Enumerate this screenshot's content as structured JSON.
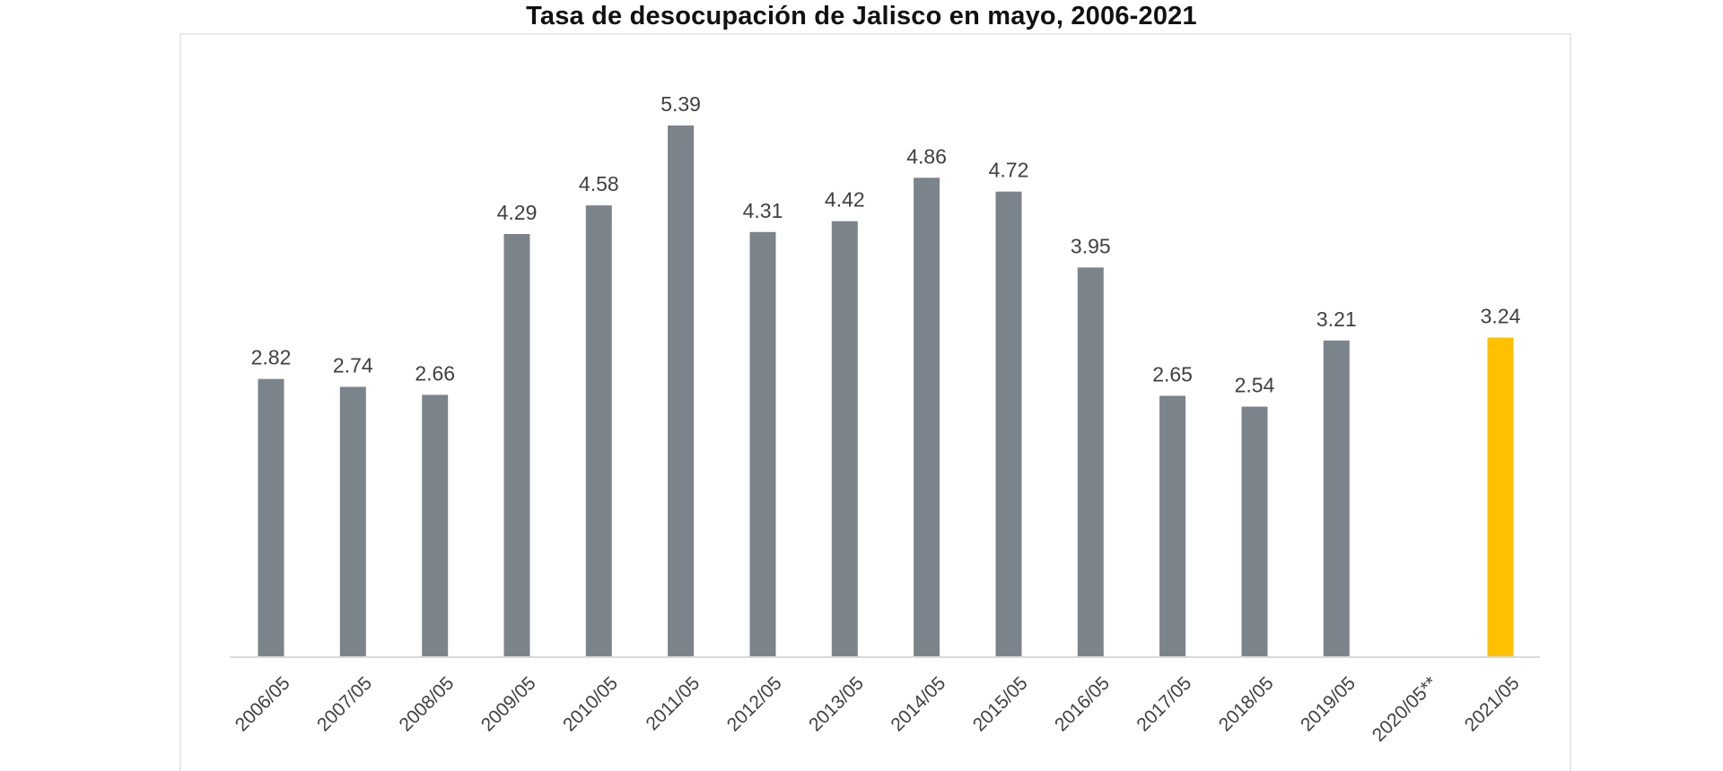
{
  "chart_data": {
    "type": "bar",
    "title": "Tasa de desocupación de Jalisco en mayo, 2006-2021",
    "xlabel": "",
    "ylabel": "",
    "ylim": [
      0,
      5.39
    ],
    "grid": false,
    "legend": "none",
    "categories": [
      "2006/05",
      "2007/05",
      "2008/05",
      "2009/05",
      "2010/05",
      "2011/05",
      "2012/05",
      "2013/05",
      "2014/05",
      "2015/05",
      "2016/05",
      "2017/05",
      "2018/05",
      "2019/05",
      "2020/05**",
      "2021/05"
    ],
    "values": [
      2.82,
      2.74,
      2.66,
      4.29,
      4.58,
      5.39,
      4.31,
      4.42,
      4.86,
      4.72,
      3.95,
      2.65,
      2.54,
      3.21,
      null,
      3.24
    ],
    "data_labels": [
      "2.82",
      "2.74",
      "2.66",
      "4.29",
      "4.58",
      "5.39",
      "4.31",
      "4.42",
      "4.86",
      "4.72",
      "3.95",
      "2.65",
      "2.54",
      "3.21",
      "",
      "3.24"
    ],
    "colors": {
      "bar": "#7b838b",
      "highlight": "#ffc000",
      "highlight_category": "2021/05",
      "axis": "#d9d9d9",
      "label": "#404040",
      "frame": "#e8e8e8"
    }
  }
}
